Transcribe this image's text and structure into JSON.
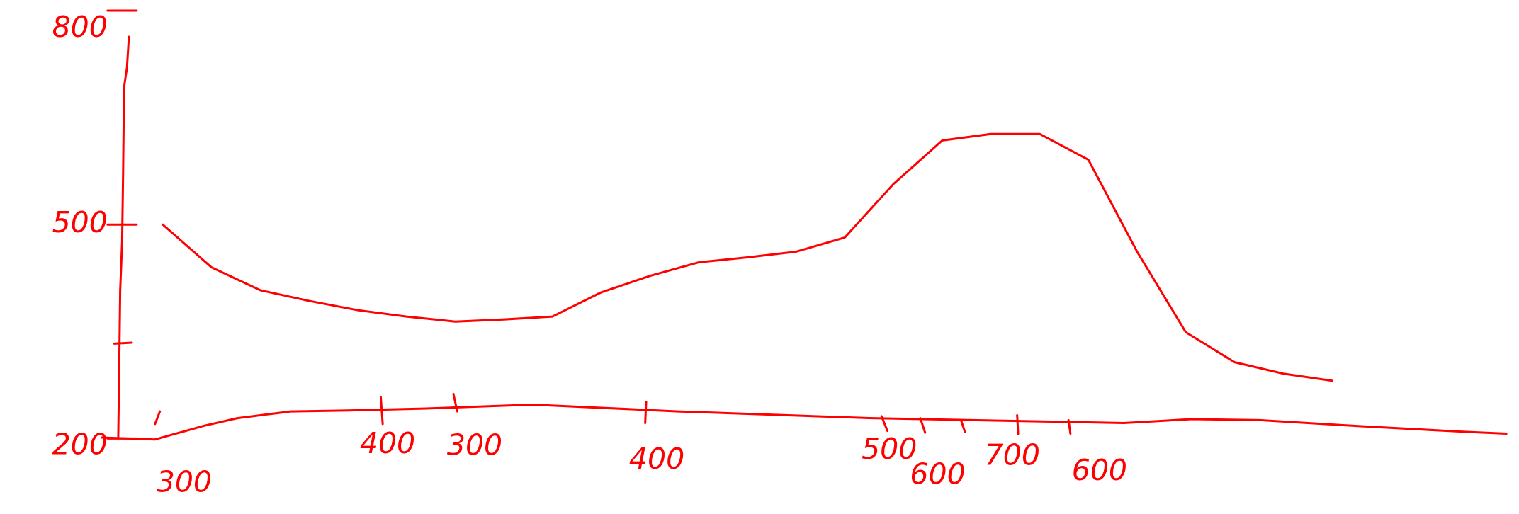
{
  "chart_data": {
    "type": "line",
    "x_labels": [
      "300",
      "400",
      "300",
      "400",
      "500",
      "600",
      "700",
      "600"
    ],
    "series": [
      {
        "color": "#ff0000",
        "values": [
          500,
          440,
          408,
          393,
          380,
          371,
          364,
          367,
          371,
          405,
          428,
          447,
          454,
          462,
          482,
          557,
          618,
          627,
          627,
          591,
          462,
          349,
          307,
          291,
          281
        ]
      }
    ],
    "ylim": [
      200,
      800
    ],
    "yticks": [
      200,
      500,
      800
    ],
    "grid": false
  }
}
